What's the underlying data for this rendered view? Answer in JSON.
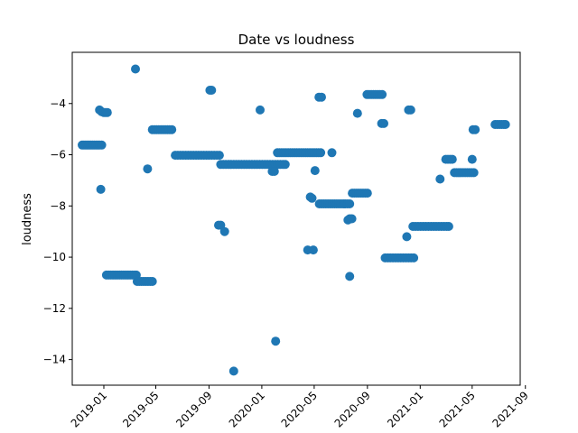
{
  "chart_data": {
    "type": "scatter",
    "title": "Date vs loudness",
    "xlabel": "",
    "ylabel": "loudness",
    "grid": false,
    "legend": "none",
    "marker_color": "#1f77b4",
    "xlim": [
      "2018-10-20",
      "2021-08-20"
    ],
    "ylim": [
      -15.0,
      -2.0
    ],
    "xticks": [
      "2019-01",
      "2019-05",
      "2019-09",
      "2020-01",
      "2020-05",
      "2020-09",
      "2021-01",
      "2021-05",
      "2021-09"
    ],
    "yticks": [
      -14,
      -12,
      -10,
      -8,
      -6,
      -4
    ],
    "points": [
      [
        "2018-11-12",
        -5.62
      ],
      [
        "2018-11-16",
        -5.62
      ],
      [
        "2018-11-20",
        -5.62
      ],
      [
        "2018-11-24",
        -5.62
      ],
      [
        "2018-11-28",
        -5.62
      ],
      [
        "2018-12-02",
        -5.62
      ],
      [
        "2018-12-06",
        -5.62
      ],
      [
        "2018-12-10",
        -5.62
      ],
      [
        "2018-12-14",
        -5.62
      ],
      [
        "2018-12-18",
        -5.62
      ],
      [
        "2018-12-22",
        -5.62
      ],
      [
        "2018-12-27",
        -5.62
      ],
      [
        "2018-12-22",
        -4.25
      ],
      [
        "2018-12-27",
        -4.32
      ],
      [
        "2019-01-01",
        -4.35
      ],
      [
        "2019-01-05",
        -4.35
      ],
      [
        "2019-01-09",
        -4.35
      ],
      [
        "2018-12-25",
        -7.35
      ],
      [
        "2019-01-07",
        -10.7
      ],
      [
        "2019-01-12",
        -10.7
      ],
      [
        "2019-01-17",
        -10.7
      ],
      [
        "2019-01-22",
        -10.7
      ],
      [
        "2019-01-27",
        -10.7
      ],
      [
        "2019-02-01",
        -10.7
      ],
      [
        "2019-02-06",
        -10.7
      ],
      [
        "2019-02-11",
        -10.7
      ],
      [
        "2019-02-16",
        -10.7
      ],
      [
        "2019-02-21",
        -10.7
      ],
      [
        "2019-02-26",
        -10.7
      ],
      [
        "2019-03-03",
        -10.7
      ],
      [
        "2019-03-08",
        -10.7
      ],
      [
        "2019-03-13",
        -10.7
      ],
      [
        "2019-03-17",
        -10.7
      ],
      [
        "2019-03-19",
        -10.95
      ],
      [
        "2019-03-24",
        -10.95
      ],
      [
        "2019-03-29",
        -10.95
      ],
      [
        "2019-04-03",
        -10.95
      ],
      [
        "2019-04-08",
        -10.95
      ],
      [
        "2019-04-13",
        -10.95
      ],
      [
        "2019-04-18",
        -10.95
      ],
      [
        "2019-04-23",
        -10.95
      ],
      [
        "2019-03-15",
        -2.65
      ],
      [
        "2019-04-12",
        -6.55
      ],
      [
        "2019-04-23",
        -5.02
      ],
      [
        "2019-04-28",
        -5.02
      ],
      [
        "2019-05-03",
        -5.02
      ],
      [
        "2019-05-08",
        -5.02
      ],
      [
        "2019-05-13",
        -5.02
      ],
      [
        "2019-05-18",
        -5.02
      ],
      [
        "2019-05-23",
        -5.02
      ],
      [
        "2019-05-28",
        -5.02
      ],
      [
        "2019-06-02",
        -5.02
      ],
      [
        "2019-06-07",
        -5.02
      ],
      [
        "2019-06-15",
        -6.02
      ],
      [
        "2019-06-21",
        -6.02
      ],
      [
        "2019-06-27",
        -6.02
      ],
      [
        "2019-07-03",
        -6.02
      ],
      [
        "2019-07-09",
        -6.02
      ],
      [
        "2019-07-15",
        -6.02
      ],
      [
        "2019-07-21",
        -6.02
      ],
      [
        "2019-07-27",
        -6.02
      ],
      [
        "2019-08-02",
        -6.02
      ],
      [
        "2019-08-08",
        -6.02
      ],
      [
        "2019-08-14",
        -6.02
      ],
      [
        "2019-08-20",
        -6.02
      ],
      [
        "2019-08-26",
        -6.02
      ],
      [
        "2019-09-01",
        -6.02
      ],
      [
        "2019-09-07",
        -6.02
      ],
      [
        "2019-09-13",
        -6.02
      ],
      [
        "2019-09-19",
        -6.02
      ],
      [
        "2019-09-25",
        -6.02
      ],
      [
        "2019-09-03",
        -3.48
      ],
      [
        "2019-09-07",
        -3.48
      ],
      [
        "2019-09-28",
        -6.38
      ],
      [
        "2019-10-04",
        -6.38
      ],
      [
        "2019-10-10",
        -6.38
      ],
      [
        "2019-10-16",
        -6.38
      ],
      [
        "2019-10-22",
        -6.38
      ],
      [
        "2019-10-28",
        -6.38
      ],
      [
        "2019-11-03",
        -6.38
      ],
      [
        "2019-11-09",
        -6.38
      ],
      [
        "2019-11-15",
        -6.38
      ],
      [
        "2019-11-21",
        -6.38
      ],
      [
        "2019-11-27",
        -6.38
      ],
      [
        "2019-12-03",
        -6.38
      ],
      [
        "2019-12-09",
        -6.38
      ],
      [
        "2019-12-15",
        -6.38
      ],
      [
        "2019-12-21",
        -6.38
      ],
      [
        "2019-12-27",
        -6.38
      ],
      [
        "2020-01-02",
        -6.38
      ],
      [
        "2020-01-08",
        -6.38
      ],
      [
        "2020-01-14",
        -6.38
      ],
      [
        "2020-01-20",
        -6.38
      ],
      [
        "2020-01-26",
        -6.38
      ],
      [
        "2020-02-01",
        -6.38
      ],
      [
        "2020-02-07",
        -6.38
      ],
      [
        "2020-02-13",
        -6.38
      ],
      [
        "2020-02-19",
        -6.38
      ],
      [
        "2020-02-24",
        -6.38
      ],
      [
        "2019-09-23",
        -8.75
      ],
      [
        "2019-09-28",
        -8.75
      ],
      [
        "2019-10-07",
        -9.0
      ],
      [
        "2019-10-28",
        -14.45
      ],
      [
        "2019-12-28",
        -4.25
      ],
      [
        "2020-01-25",
        -6.65
      ],
      [
        "2020-01-30",
        -6.65
      ],
      [
        "2020-02-02",
        -13.28
      ],
      [
        "2020-02-06",
        -5.92
      ],
      [
        "2020-02-11",
        -5.92
      ],
      [
        "2020-02-16",
        -5.92
      ],
      [
        "2020-02-21",
        -5.92
      ],
      [
        "2020-02-26",
        -5.92
      ],
      [
        "2020-03-02",
        -5.92
      ],
      [
        "2020-03-07",
        -5.92
      ],
      [
        "2020-03-12",
        -5.92
      ],
      [
        "2020-03-17",
        -5.92
      ],
      [
        "2020-03-22",
        -5.92
      ],
      [
        "2020-03-27",
        -5.92
      ],
      [
        "2020-04-01",
        -5.92
      ],
      [
        "2020-04-06",
        -5.92
      ],
      [
        "2020-04-11",
        -5.92
      ],
      [
        "2020-04-16",
        -5.92
      ],
      [
        "2020-04-21",
        -5.92
      ],
      [
        "2020-04-26",
        -5.92
      ],
      [
        "2020-05-01",
        -5.92
      ],
      [
        "2020-05-06",
        -5.92
      ],
      [
        "2020-05-11",
        -5.92
      ],
      [
        "2020-05-16",
        -5.92
      ],
      [
        "2020-06-11",
        -5.92
      ],
      [
        "2020-04-22",
        -7.65
      ],
      [
        "2020-04-26",
        -7.7
      ],
      [
        "2020-04-16",
        -9.72
      ],
      [
        "2020-04-29",
        -9.72
      ],
      [
        "2020-05-03",
        -6.62
      ],
      [
        "2020-05-12",
        -3.75
      ],
      [
        "2020-05-18",
        -3.75
      ],
      [
        "2020-05-13",
        -7.92
      ],
      [
        "2020-05-18",
        -7.92
      ],
      [
        "2020-05-23",
        -7.92
      ],
      [
        "2020-05-28",
        -7.92
      ],
      [
        "2020-06-02",
        -7.92
      ],
      [
        "2020-06-07",
        -7.92
      ],
      [
        "2020-06-12",
        -7.92
      ],
      [
        "2020-06-17",
        -7.92
      ],
      [
        "2020-06-22",
        -7.92
      ],
      [
        "2020-06-27",
        -7.92
      ],
      [
        "2020-07-02",
        -7.92
      ],
      [
        "2020-07-07",
        -7.92
      ],
      [
        "2020-07-12",
        -7.92
      ],
      [
        "2020-07-17",
        -7.92
      ],
      [
        "2020-07-22",
        -7.92
      ],
      [
        "2020-07-18",
        -8.55
      ],
      [
        "2020-07-22",
        -8.5
      ],
      [
        "2020-07-27",
        -8.5
      ],
      [
        "2020-07-22",
        -10.75
      ],
      [
        "2020-07-28",
        -7.5
      ],
      [
        "2020-08-02",
        -7.5
      ],
      [
        "2020-08-07",
        -7.5
      ],
      [
        "2020-08-12",
        -7.5
      ],
      [
        "2020-08-17",
        -7.5
      ],
      [
        "2020-08-22",
        -7.5
      ],
      [
        "2020-08-27",
        -7.5
      ],
      [
        "2020-09-01",
        -7.5
      ],
      [
        "2020-08-09",
        -4.38
      ],
      [
        "2020-08-31",
        -3.65
      ],
      [
        "2020-09-05",
        -3.65
      ],
      [
        "2020-09-10",
        -3.65
      ],
      [
        "2020-09-15",
        -3.65
      ],
      [
        "2020-09-20",
        -3.65
      ],
      [
        "2020-09-25",
        -3.65
      ],
      [
        "2020-09-30",
        -3.65
      ],
      [
        "2020-10-05",
        -3.65
      ],
      [
        "2020-10-04",
        -4.78
      ],
      [
        "2020-10-09",
        -4.78
      ],
      [
        "2020-10-12",
        -10.03
      ],
      [
        "2020-10-18",
        -10.03
      ],
      [
        "2020-10-24",
        -10.03
      ],
      [
        "2020-10-30",
        -10.03
      ],
      [
        "2020-11-05",
        -10.03
      ],
      [
        "2020-11-11",
        -10.03
      ],
      [
        "2020-11-17",
        -10.03
      ],
      [
        "2020-11-23",
        -10.03
      ],
      [
        "2020-11-29",
        -10.03
      ],
      [
        "2020-12-05",
        -10.03
      ],
      [
        "2020-12-11",
        -10.03
      ],
      [
        "2020-12-17",
        -10.03
      ],
      [
        "2020-12-01",
        -9.2
      ],
      [
        "2020-12-05",
        -4.25
      ],
      [
        "2020-12-10",
        -4.25
      ],
      [
        "2020-12-15",
        -8.8
      ],
      [
        "2020-12-21",
        -8.8
      ],
      [
        "2020-12-27",
        -8.8
      ],
      [
        "2021-01-02",
        -8.8
      ],
      [
        "2021-01-08",
        -8.8
      ],
      [
        "2021-01-14",
        -8.8
      ],
      [
        "2021-01-20",
        -8.8
      ],
      [
        "2021-01-26",
        -8.8
      ],
      [
        "2021-02-01",
        -8.8
      ],
      [
        "2021-02-07",
        -8.8
      ],
      [
        "2021-02-13",
        -8.8
      ],
      [
        "2021-02-19",
        -8.8
      ],
      [
        "2021-02-25",
        -8.8
      ],
      [
        "2021-03-03",
        -8.8
      ],
      [
        "2021-03-08",
        -8.8
      ],
      [
        "2021-02-16",
        -6.95
      ],
      [
        "2021-03-01",
        -6.18
      ],
      [
        "2021-03-06",
        -6.18
      ],
      [
        "2021-03-11",
        -6.18
      ],
      [
        "2021-03-16",
        -6.18
      ],
      [
        "2021-03-21",
        -6.7
      ],
      [
        "2021-03-26",
        -6.7
      ],
      [
        "2021-03-31",
        -6.7
      ],
      [
        "2021-04-05",
        -6.7
      ],
      [
        "2021-04-10",
        -6.7
      ],
      [
        "2021-04-15",
        -6.7
      ],
      [
        "2021-04-20",
        -6.7
      ],
      [
        "2021-04-25",
        -6.7
      ],
      [
        "2021-04-30",
        -6.7
      ],
      [
        "2021-05-05",
        -6.7
      ],
      [
        "2021-05-01",
        -6.18
      ],
      [
        "2021-05-03",
        -5.02
      ],
      [
        "2021-05-08",
        -5.02
      ],
      [
        "2021-06-23",
        -4.82
      ],
      [
        "2021-06-28",
        -4.82
      ],
      [
        "2021-07-03",
        -4.82
      ],
      [
        "2021-07-08",
        -4.82
      ],
      [
        "2021-07-13",
        -4.82
      ],
      [
        "2021-07-17",
        -4.82
      ]
    ]
  }
}
